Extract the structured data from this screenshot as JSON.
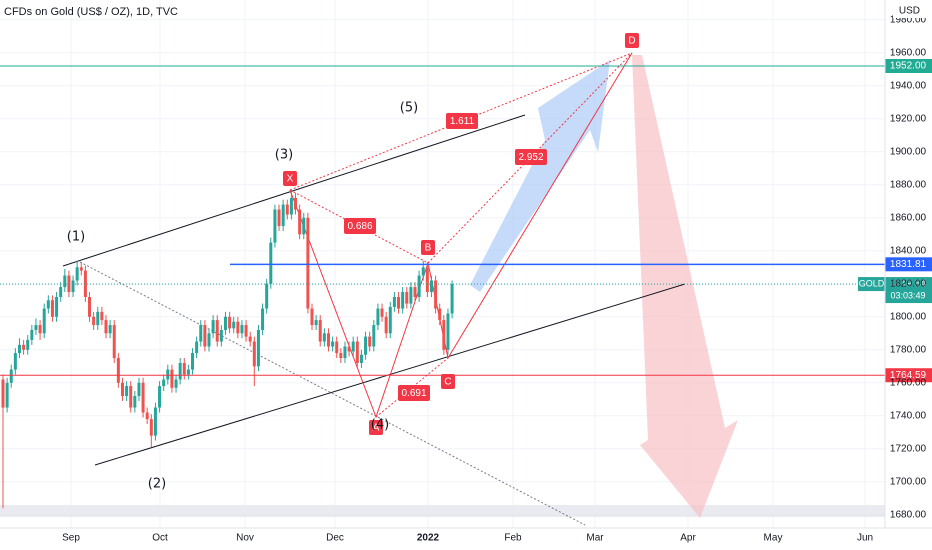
{
  "chart_data": {
    "type": "candlestick",
    "title": "CFDs on Gold (US$ / OZ), 1D, TVC",
    "currency": "USD",
    "up_color": "#26a69a",
    "down_color": "#ef5350",
    "ylim": [
      1672,
      1992
    ],
    "yticks": [
      {
        "value": 1680,
        "label": "1680.00"
      },
      {
        "value": 1700,
        "label": "1700.00"
      },
      {
        "value": 1720,
        "label": "1720.00"
      },
      {
        "value": 1740,
        "label": "1740.00"
      },
      {
        "value": 1760,
        "label": "1760.00"
      },
      {
        "value": 1780,
        "label": "1780.00"
      },
      {
        "value": 1800,
        "label": "1800.00"
      },
      {
        "value": 1820,
        "label": "1820.00"
      },
      {
        "value": 1840,
        "label": "1840.00"
      },
      {
        "value": 1860,
        "label": "1860.00"
      },
      {
        "value": 1880,
        "label": "1880.00"
      },
      {
        "value": 1900,
        "label": "1900.00"
      },
      {
        "value": 1920,
        "label": "1920.00"
      },
      {
        "value": 1940,
        "label": "1940.00"
      },
      {
        "value": 1960,
        "label": "1960.00"
      },
      {
        "value": 1980,
        "label": "1980.00"
      }
    ],
    "x_labels": [
      "Sep",
      "Oct",
      "Nov",
      "Dec",
      "2022",
      "Feb",
      "Mar",
      "Apr",
      "May",
      "Jun"
    ],
    "candles": [
      [
        1762,
        1765,
        1684,
        1745
      ],
      [
        1745,
        1763,
        1742,
        1760
      ],
      [
        1760,
        1771,
        1757,
        1768
      ],
      [
        1768,
        1781,
        1765,
        1778
      ],
      [
        1778,
        1787,
        1775,
        1783
      ],
      [
        1783,
        1786,
        1777,
        1780
      ],
      [
        1780,
        1789,
        1777,
        1786
      ],
      [
        1786,
        1795,
        1783,
        1792
      ],
      [
        1792,
        1799,
        1789,
        1795
      ],
      [
        1795,
        1798,
        1786,
        1790
      ],
      [
        1790,
        1808,
        1787,
        1805
      ],
      [
        1805,
        1813,
        1802,
        1810
      ],
      [
        1810,
        1813,
        1797,
        1800
      ],
      [
        1800,
        1815,
        1797,
        1812
      ],
      [
        1812,
        1821,
        1809,
        1818
      ],
      [
        1818,
        1829,
        1815,
        1825
      ],
      [
        1825,
        1828,
        1812,
        1815
      ],
      [
        1815,
        1825,
        1812,
        1822
      ],
      [
        1822,
        1834,
        1819,
        1830
      ],
      [
        1830,
        1833,
        1825,
        1828
      ],
      [
        1828,
        1831,
        1809,
        1812
      ],
      [
        1812,
        1815,
        1797,
        1800
      ],
      [
        1800,
        1803,
        1792,
        1795
      ],
      [
        1795,
        1806,
        1792,
        1803
      ],
      [
        1803,
        1806,
        1795,
        1798
      ],
      [
        1798,
        1801,
        1787,
        1790
      ],
      [
        1790,
        1798,
        1787,
        1795
      ],
      [
        1795,
        1798,
        1772,
        1775
      ],
      [
        1775,
        1778,
        1757,
        1760
      ],
      [
        1760,
        1763,
        1749,
        1752
      ],
      [
        1752,
        1761,
        1749,
        1758
      ],
      [
        1758,
        1761,
        1742,
        1745
      ],
      [
        1745,
        1755,
        1742,
        1752
      ],
      [
        1752,
        1763,
        1749,
        1760
      ],
      [
        1760,
        1763,
        1739,
        1742
      ],
      [
        1742,
        1745,
        1735,
        1738
      ],
      [
        1738,
        1741,
        1721,
        1728
      ],
      [
        1728,
        1748,
        1725,
        1745
      ],
      [
        1745,
        1761,
        1742,
        1758
      ],
      [
        1758,
        1765,
        1755,
        1762
      ],
      [
        1762,
        1771,
        1759,
        1768
      ],
      [
        1768,
        1771,
        1754,
        1757
      ],
      [
        1757,
        1765,
        1754,
        1762
      ],
      [
        1762,
        1775,
        1759,
        1772
      ],
      [
        1772,
        1775,
        1762,
        1765
      ],
      [
        1765,
        1771,
        1762,
        1768
      ],
      [
        1768,
        1781,
        1765,
        1778
      ],
      [
        1778,
        1788,
        1775,
        1785
      ],
      [
        1785,
        1798,
        1782,
        1795
      ],
      [
        1795,
        1798,
        1779,
        1782
      ],
      [
        1782,
        1793,
        1779,
        1790
      ],
      [
        1790,
        1801,
        1787,
        1798
      ],
      [
        1798,
        1801,
        1782,
        1785
      ],
      [
        1785,
        1795,
        1782,
        1792
      ],
      [
        1792,
        1803,
        1789,
        1800
      ],
      [
        1800,
        1803,
        1790,
        1793
      ],
      [
        1793,
        1800,
        1790,
        1797
      ],
      [
        1797,
        1800,
        1787,
        1790
      ],
      [
        1790,
        1798,
        1787,
        1795
      ],
      [
        1795,
        1798,
        1785,
        1788
      ],
      [
        1788,
        1791,
        1782,
        1785
      ],
      [
        1785,
        1788,
        1758,
        1770
      ],
      [
        1770,
        1795,
        1767,
        1792
      ],
      [
        1792,
        1808,
        1789,
        1805
      ],
      [
        1805,
        1823,
        1802,
        1820
      ],
      [
        1820,
        1848,
        1817,
        1845
      ],
      [
        1845,
        1868,
        1842,
        1865
      ],
      [
        1865,
        1868,
        1852,
        1855
      ],
      [
        1855,
        1871,
        1852,
        1868
      ],
      [
        1868,
        1871,
        1859,
        1862
      ],
      [
        1862,
        1877,
        1859,
        1872
      ],
      [
        1872,
        1875,
        1862,
        1865
      ],
      [
        1865,
        1868,
        1847,
        1850
      ],
      [
        1850,
        1863,
        1847,
        1860
      ],
      [
        1860,
        1863,
        1802,
        1805
      ],
      [
        1805,
        1808,
        1792,
        1795
      ],
      [
        1795,
        1801,
        1792,
        1798
      ],
      [
        1798,
        1801,
        1782,
        1785
      ],
      [
        1785,
        1793,
        1782,
        1790
      ],
      [
        1790,
        1793,
        1779,
        1782
      ],
      [
        1782,
        1788,
        1779,
        1785
      ],
      [
        1785,
        1788,
        1775,
        1778
      ],
      [
        1778,
        1781,
        1772,
        1775
      ],
      [
        1775,
        1785,
        1772,
        1782
      ],
      [
        1782,
        1785,
        1776,
        1779
      ],
      [
        1779,
        1788,
        1776,
        1785
      ],
      [
        1785,
        1788,
        1769,
        1772
      ],
      [
        1772,
        1780,
        1769,
        1777
      ],
      [
        1777,
        1791,
        1774,
        1788
      ],
      [
        1788,
        1791,
        1779,
        1782
      ],
      [
        1782,
        1798,
        1779,
        1795
      ],
      [
        1795,
        1808,
        1792,
        1805
      ],
      [
        1805,
        1808,
        1797,
        1800
      ],
      [
        1800,
        1803,
        1787,
        1790
      ],
      [
        1790,
        1809,
        1787,
        1806
      ],
      [
        1806,
        1815,
        1803,
        1812
      ],
      [
        1812,
        1815,
        1802,
        1805
      ],
      [
        1805,
        1818,
        1802,
        1815
      ],
      [
        1815,
        1818,
        1805,
        1808
      ],
      [
        1808,
        1821,
        1805,
        1818
      ],
      [
        1818,
        1821,
        1809,
        1812
      ],
      [
        1812,
        1828,
        1809,
        1825
      ],
      [
        1825,
        1834,
        1822,
        1830
      ],
      [
        1830,
        1833,
        1812,
        1815
      ],
      [
        1815,
        1825,
        1812,
        1822
      ],
      [
        1822,
        1825,
        1802,
        1805
      ],
      [
        1805,
        1808,
        1795,
        1798
      ],
      [
        1798,
        1801,
        1777,
        1780
      ],
      [
        1780,
        1805,
        1777,
        1802
      ],
      [
        1802,
        1822,
        1799,
        1819.84
      ]
    ],
    "levels": [
      {
        "value": 1952,
        "label": "1952.00",
        "color": "#22ab94"
      },
      {
        "value": 1831.81,
        "label": "1831.81",
        "color": "#2962ff"
      },
      {
        "value": 1764.59,
        "label": "1764.59",
        "color": "#f23645"
      }
    ],
    "last_price": {
      "symbol": "GOLD",
      "value": 1819.84,
      "label": "1819.84",
      "countdown": "03:03:49",
      "color": "#26a69a"
    },
    "pattern_points": [
      "X",
      "A",
      "B",
      "C",
      "D"
    ],
    "ratios": [
      "0.686",
      "0.691",
      "1.611",
      "2.952"
    ],
    "waves": [
      "(1)",
      "(2)",
      "(3)",
      "(4)",
      "(5)"
    ]
  }
}
